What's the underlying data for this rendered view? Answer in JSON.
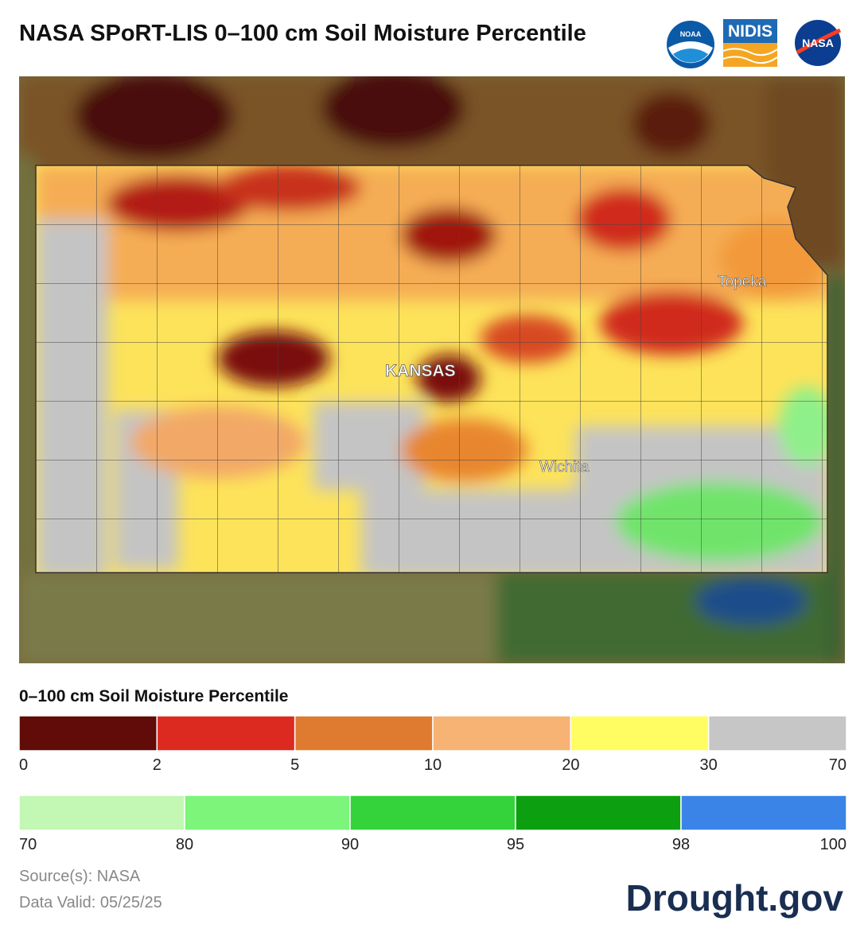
{
  "header": {
    "title": "NASA SPoRT-LIS 0–100 cm Soil Moisture Percentile",
    "logos": [
      "NOAA",
      "NIDIS",
      "NASA"
    ]
  },
  "map": {
    "labels": [
      "Topeka",
      "KANSAS",
      "Wichita"
    ]
  },
  "legend": {
    "title": "0–100 cm Soil Moisture Percentile",
    "rows": [
      {
        "colors": [
          "#610c08",
          "#dd2a20",
          "#de7b30",
          "#f6b374",
          "#fffd62",
          "#c6c6c6"
        ],
        "ticks": [
          "0",
          "2",
          "5",
          "10",
          "20",
          "30",
          "70"
        ]
      },
      {
        "colors": [
          "#c3f7b4",
          "#7cf57a",
          "#35d33b",
          "#0c9f10",
          "#3a84e8"
        ],
        "ticks": [
          "70",
          "80",
          "90",
          "95",
          "98",
          "100"
        ]
      }
    ]
  },
  "footer": {
    "source": "Source(s): NASA",
    "valid": "Data Valid: 05/25/25",
    "brand": "Drought.gov"
  }
}
